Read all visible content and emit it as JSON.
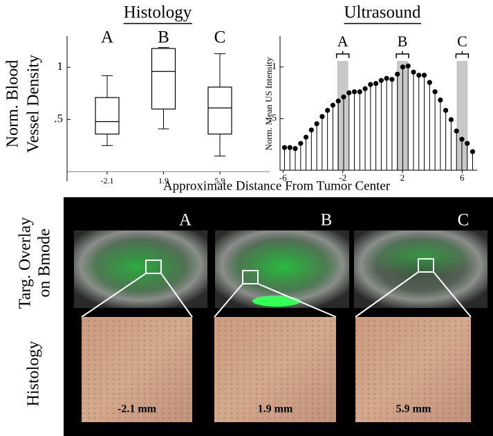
{
  "chart_data": [
    {
      "type": "box",
      "title": "Histology",
      "ylabel": [
        "Norm. Blood",
        "Vessel Density"
      ],
      "categories": [
        "-2.1",
        "1.9",
        "5.9"
      ],
      "annotations": [
        "A",
        "B",
        "C"
      ],
      "values": [
        {
          "min": 0.25,
          "q1": 0.36,
          "median": 0.48,
          "q3": 0.71,
          "max": 0.92
        },
        {
          "min": 0.41,
          "q1": 0.6,
          "median": 0.96,
          "q3": 1.18,
          "max": 1.19
        },
        {
          "min": 0.15,
          "q1": 0.36,
          "median": 0.61,
          "q3": 0.81,
          "max": 1.13
        }
      ],
      "color": "#000000",
      "ylim": [
        0,
        1.3
      ],
      "yticks": [
        {
          "value": 0.5,
          "label": ".5"
        },
        1
      ]
    },
    {
      "type": "stem",
      "title": "Ultrasound",
      "ylabel": "Norm. Mean US Intensity",
      "x": [
        -5.9,
        -5.54,
        -5.18,
        -4.82,
        -4.46,
        -4.1,
        -3.74,
        -3.38,
        -3.02,
        -2.66,
        -2.3,
        -1.94,
        -1.58,
        -1.22,
        -0.86,
        -0.5,
        -0.14,
        0.22,
        0.58,
        0.94,
        1.3,
        1.66,
        2.02,
        2.38,
        2.74,
        3.1,
        3.46,
        3.82,
        4.18,
        4.54,
        4.9,
        5.26,
        5.62,
        5.98,
        6.34,
        6.7
      ],
      "values": [
        0.22,
        0.22,
        0.21,
        0.26,
        0.32,
        0.39,
        0.45,
        0.52,
        0.58,
        0.63,
        0.67,
        0.71,
        0.75,
        0.76,
        0.76,
        0.79,
        0.83,
        0.84,
        0.87,
        0.89,
        0.88,
        0.93,
        1.0,
        1.01,
        0.95,
        0.92,
        0.92,
        0.85,
        0.76,
        0.68,
        0.58,
        0.49,
        0.38,
        0.3,
        0.26,
        0.18
      ],
      "color": "#000000",
      "highlights": [
        {
          "label": "A",
          "x": -2
        },
        {
          "label": "B",
          "x": 2
        },
        {
          "label": "C",
          "x": 6
        }
      ],
      "xlim": [
        -6.2,
        7.0
      ],
      "xticks": [
        -6,
        -2,
        2,
        6
      ],
      "ylim": [
        0,
        1.3
      ],
      "yticks": [
        {
          "value": 0.5,
          "label": ".5"
        },
        1
      ]
    }
  ],
  "xlabel": "Approximate Distance From Tumor Center",
  "panels": {
    "row_labels": [
      [
        "Targ. Overlay",
        "on Bmode"
      ],
      [
        "Histology"
      ]
    ],
    "letters": [
      "A",
      "B",
      "C"
    ],
    "distances": [
      "-2.1 mm",
      "1.9 mm",
      "5.9 mm"
    ]
  }
}
